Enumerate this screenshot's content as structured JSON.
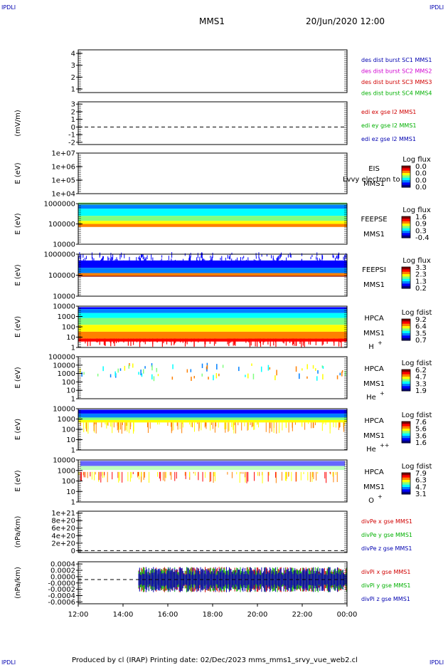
{
  "corner_label": "IPDLI",
  "header": {
    "spacecraft": "MMS1",
    "datetime": "20/Jun/2020 12:00"
  },
  "footer": {
    "text": "Produced by cl (IRAP)   Printing date: 02/Dec/2023   mms_mms1_srvy_vue_web2.cl"
  },
  "colors": {
    "blue": "#0000b0",
    "magenta": "#d000d0",
    "red": "#d00000",
    "green": "#00b000",
    "rainbow": [
      "#00007f",
      "#0000ff",
      "#0080ff",
      "#00ffff",
      "#80ff80",
      "#ffff00",
      "#ff8000",
      "#ff0000",
      "#800000"
    ]
  },
  "chart_data": [
    {
      "type": "line",
      "name": "des dist burst",
      "yticks": [
        "1",
        "2",
        "3",
        "4"
      ],
      "ylim": [
        0.7,
        4.3
      ],
      "ylabel": "",
      "legend": [
        {
          "text": "des dist burst SC1 MMS1",
          "color": "#0000b0"
        },
        {
          "text": "des dist burst SC2 MMS2",
          "color": "#d000d0"
        },
        {
          "text": "des dist burst SC3 MMS3",
          "color": "#d00000"
        },
        {
          "text": "des dist burst SC4 MMS4",
          "color": "#00b000"
        }
      ]
    },
    {
      "type": "line",
      "name": "edi e gse",
      "yticks": [
        "-2",
        "-1",
        "0",
        "1",
        "2",
        "3"
      ],
      "ylim": [
        -2.3,
        3.3
      ],
      "ylabel": "(mV/m)",
      "zero_line": 0,
      "legend": [
        {
          "text": "edi ex gse l2 MMS1",
          "color": "#d00000"
        },
        {
          "text": "edi ey gse l2 MMS1",
          "color": "#00b000"
        },
        {
          "text": "edi ez gse l2 MMS1",
          "color": "#0000b0"
        }
      ]
    },
    {
      "type": "heatmap",
      "name": "EIS",
      "yticks": [
        "1e+04",
        "1e+05",
        "1e+06",
        "1e+07"
      ],
      "ylim": [
        4,
        7
      ],
      "ylabel": "E (eV)",
      "log_y": true,
      "labels": [
        "EIS",
        "MMS1"
      ],
      "overlay_text": "Lvvy electron to",
      "cbar_title": "Log flux",
      "cbar_ticks": [
        "0.0",
        "0.0",
        "0.0",
        "0.0"
      ]
    },
    {
      "type": "heatmap",
      "name": "FEEPSE",
      "yticks": [
        "10000",
        "100000",
        "1000000"
      ],
      "ylim": [
        4,
        6
      ],
      "ylabel": "E (eV)",
      "log_y": true,
      "labels": [
        "FEEPSE",
        "MMS1"
      ],
      "cbar_title": "Log flux",
      "cbar_ticks": [
        "1.6",
        "0.9",
        "0.3",
        "-0.4"
      ],
      "bands": [
        {
          "lo": 5.95,
          "hi": 6.05,
          "c": "#80ff80"
        },
        {
          "lo": 5.75,
          "hi": 5.95,
          "c": "#0080ff"
        },
        {
          "lo": 5.4,
          "hi": 5.75,
          "c": "#00ffff"
        },
        {
          "lo": 5.15,
          "hi": 5.4,
          "c": "#80ff80"
        },
        {
          "lo": 5.0,
          "hi": 5.15,
          "c": "#ffff00"
        },
        {
          "lo": 4.85,
          "hi": 5.0,
          "c": "#ff8000"
        }
      ]
    },
    {
      "type": "heatmap",
      "name": "FEEPSI",
      "yticks": [
        "10000",
        "100000",
        "1000000"
      ],
      "ylim": [
        4,
        6
      ],
      "ylabel": "E (eV)",
      "log_y": true,
      "labels": [
        "FEEPSI",
        "MMS1"
      ],
      "cbar_title": "Log flux",
      "cbar_ticks": [
        "3.3",
        "2.3",
        "1.3",
        "0.2"
      ],
      "bands": [
        {
          "lo": 5.35,
          "hi": 5.7,
          "c": "#0000ff"
        },
        {
          "lo": 5.1,
          "hi": 5.35,
          "c": "#0080ff"
        },
        {
          "lo": 4.97,
          "hi": 5.1,
          "c": "#ff8000"
        },
        {
          "lo": 4.93,
          "hi": 4.97,
          "c": "#800000"
        }
      ]
    },
    {
      "type": "heatmap",
      "name": "HPCA H+",
      "yticks": [
        "1",
        "10",
        "100",
        "1000",
        "10000"
      ],
      "ylim": [
        0,
        4.2
      ],
      "ylabel": "E (eV)",
      "log_y": true,
      "labels": [
        "HPCA",
        "MMS1",
        "H"
      ],
      "species_sup": "+",
      "cbar_title": "Log fdist",
      "cbar_ticks": [
        "9.2",
        "6.4",
        "3.5",
        "0.7"
      ],
      "bands": [
        {
          "lo": 3.9,
          "hi": 4.1,
          "c": "#0000ff"
        },
        {
          "lo": 3.5,
          "hi": 3.9,
          "c": "#0080ff"
        },
        {
          "lo": 3.0,
          "hi": 3.5,
          "c": "#00ffff"
        },
        {
          "lo": 2.3,
          "hi": 3.0,
          "c": "#80ff80"
        },
        {
          "lo": 1.6,
          "hi": 2.3,
          "c": "#ffff00"
        },
        {
          "lo": 0.9,
          "hi": 1.6,
          "c": "#ff8000"
        },
        {
          "lo": 0.6,
          "hi": 0.9,
          "c": "#ff0000"
        }
      ]
    },
    {
      "type": "heatmap",
      "name": "HPCA He+",
      "yticks": [
        "1",
        "10",
        "100",
        "1000",
        "10000",
        "100000"
      ],
      "ylim": [
        0,
        5
      ],
      "ylabel": "E (eV)",
      "log_y": true,
      "labels": [
        "HPCA",
        "MMS1",
        "He"
      ],
      "species_sup": "+",
      "cbar_title": "Log fdist",
      "cbar_ticks": [
        "6.2",
        "4.7",
        "3.3",
        "1.9"
      ]
    },
    {
      "type": "heatmap",
      "name": "HPCA He++",
      "yticks": [
        "1",
        "10",
        "100",
        "1000",
        "10000"
      ],
      "ylim": [
        0,
        4.2
      ],
      "ylabel": "E (eV)",
      "log_y": true,
      "labels": [
        "HPCA",
        "MMS1",
        "He"
      ],
      "species_sup": "++",
      "cbar_title": "Log fdist",
      "cbar_ticks": [
        "7.6",
        "5.6",
        "3.6",
        "1.6"
      ],
      "bands": [
        {
          "lo": 3.7,
          "hi": 4.1,
          "c": "#0000ff"
        },
        {
          "lo": 3.3,
          "hi": 3.7,
          "c": "#0080ff"
        },
        {
          "lo": 3.05,
          "hi": 3.3,
          "c": "#80ff80"
        },
        {
          "lo": 2.8,
          "hi": 3.05,
          "c": "#ffff00"
        }
      ]
    },
    {
      "type": "heatmap",
      "name": "HPCA O+",
      "yticks": [
        "1",
        "10",
        "100",
        "1000",
        "10000"
      ],
      "ylim": [
        0,
        4.2
      ],
      "ylabel": "E (eV)",
      "log_y": true,
      "labels": [
        "HPCA",
        "MMS1",
        "O"
      ],
      "species_sup": "+",
      "cbar_title": "Log fdist",
      "cbar_ticks": [
        "7.9",
        "6.3",
        "4.7",
        "3.1"
      ]
    },
    {
      "type": "line",
      "name": "divPe",
      "yticks": [
        "0",
        "2e+20",
        "4e+20",
        "6e+20",
        "8e+20",
        "1e+21"
      ],
      "ylim": [
        -0.05,
        1.05
      ],
      "ylabel": "(nPa/km)",
      "zero_line": 0,
      "legend": [
        {
          "text": "divPe x gse MMS1",
          "color": "#d00000"
        },
        {
          "text": "divPe y gse MMS1",
          "color": "#00b000"
        },
        {
          "text": "divPe z gse MMS1",
          "color": "#0000b0"
        }
      ]
    },
    {
      "type": "line",
      "name": "divPi",
      "yticks": [
        "-0.0006",
        "-0.0004",
        "-0.0002",
        "-0.0000",
        "0.0000",
        "0.0002",
        "0.0004"
      ],
      "ylim": [
        -0.00065,
        0.00048
      ],
      "ylabel": "(nPa/km)",
      "zero_line": 0,
      "legend": [
        {
          "text": "divPi x gse MMS1",
          "color": "#d00000"
        },
        {
          "text": "divPi y gse MMS1",
          "color": "#00b000"
        },
        {
          "text": "divPi z gse MMS1",
          "color": "#0000b0"
        }
      ]
    }
  ],
  "x_axis": {
    "ticks": [
      "12:00",
      "14:00",
      "16:00",
      "18:00",
      "20:00",
      "22:00",
      "00:00"
    ]
  }
}
